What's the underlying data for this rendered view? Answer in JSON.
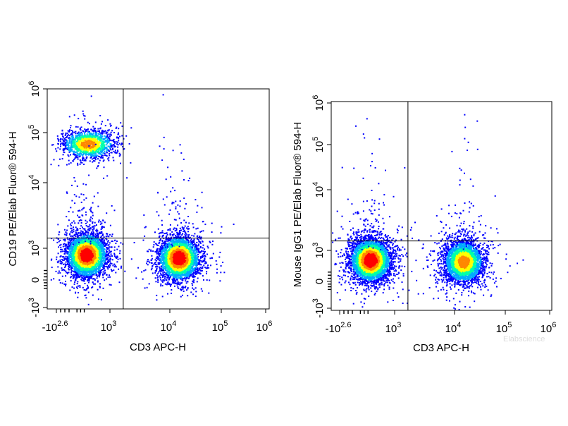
{
  "chart_data": [
    {
      "type": "scatter",
      "subtype": "flow-cytometry-density-dot-plot",
      "xlabel": "CD3 APC-H",
      "ylabel": "CD19 PE/Elab Fluor® 594-H",
      "x_scale": "biexponential",
      "y_scale": "biexponential",
      "xlim": [
        -400,
        1000000
      ],
      "ylim": [
        -1000,
        1000000
      ],
      "x_ticks": [
        {
          "value": -400,
          "base": "-10",
          "exp": "2.6"
        },
        {
          "value": 1000,
          "base": "10",
          "exp": "3"
        },
        {
          "value": 10000,
          "base": "10",
          "exp": "4"
        },
        {
          "value": 100000,
          "base": "10",
          "exp": "5"
        },
        {
          "value": 1000000,
          "base": "10",
          "exp": "6"
        }
      ],
      "y_ticks": [
        {
          "value": -1000,
          "base": "-10",
          "exp": "3"
        },
        {
          "value": 0,
          "base": "0",
          "exp": ""
        },
        {
          "value": 1000,
          "base": "10",
          "exp": "3"
        },
        {
          "value": 10000,
          "base": "10",
          "exp": "4"
        },
        {
          "value": 100000,
          "base": "10",
          "exp": "5"
        },
        {
          "value": 1000000,
          "base": "10",
          "exp": "6"
        }
      ],
      "quadrant_gate": {
        "x": 3000,
        "y": 2400
      },
      "color_scale": [
        "#0000ff",
        "#00aaff",
        "#00ffaa",
        "#ffff00",
        "#ff8800",
        "#ff0000"
      ],
      "populations": [
        {
          "x_center": 400,
          "y_center": 80000,
          "count": 1400
        },
        {
          "x_center": 350,
          "y_center": 800,
          "count": 3600
        },
        {
          "x_center": 25000,
          "y_center": 700,
          "count": 3400
        }
      ]
    },
    {
      "type": "scatter",
      "subtype": "flow-cytometry-density-dot-plot",
      "xlabel": "CD3 APC-H",
      "ylabel": "Mouse IgG1 PE/Elab Fluor® 594-H",
      "x_scale": "biexponential",
      "y_scale": "biexponential",
      "xlim": [
        -400,
        1000000
      ],
      "ylim": [
        -1000,
        1000000
      ],
      "x_ticks": [
        {
          "value": -400,
          "base": "-10",
          "exp": "2.6"
        },
        {
          "value": 1000,
          "base": "10",
          "exp": "3"
        },
        {
          "value": 10000,
          "base": "10",
          "exp": "4"
        },
        {
          "value": 100000,
          "base": "10",
          "exp": "5"
        },
        {
          "value": 1000000,
          "base": "10",
          "exp": "6"
        }
      ],
      "y_ticks": [
        {
          "value": -1000,
          "base": "-10",
          "exp": "3"
        },
        {
          "value": 0,
          "base": "0",
          "exp": ""
        },
        {
          "value": 1000,
          "base": "10",
          "exp": "3"
        },
        {
          "value": 10000,
          "base": "10",
          "exp": "4"
        },
        {
          "value": 100000,
          "base": "10",
          "exp": "5"
        },
        {
          "value": 1000000,
          "base": "10",
          "exp": "6"
        }
      ],
      "quadrant_gate": {
        "x": 3000,
        "y": 2400
      },
      "color_scale": [
        "#0000ff",
        "#00aaff",
        "#00ffaa",
        "#ffff00",
        "#ff8800",
        "#ff0000"
      ],
      "populations": [
        {
          "x_center": 350,
          "y_center": 700,
          "count": 4200
        },
        {
          "x_center": 25000,
          "y_center": 650,
          "count": 3000
        }
      ]
    }
  ],
  "watermark": "Elabscience"
}
